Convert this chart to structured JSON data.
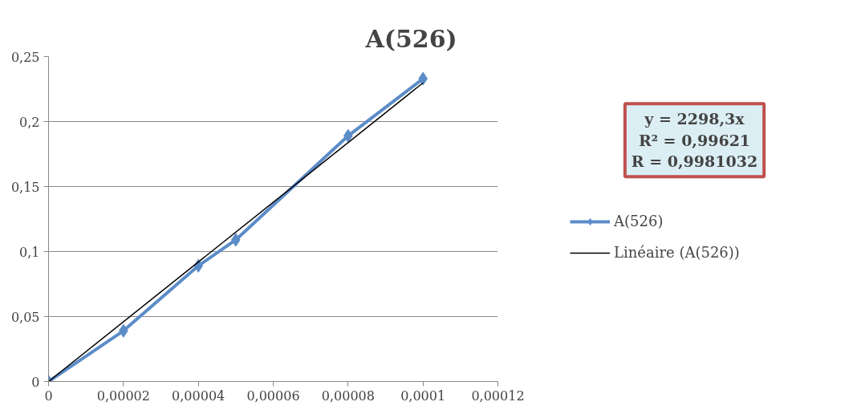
{
  "chart_data": {
    "type": "line",
    "title": "A(526)",
    "xlim": [
      0,
      0.00012
    ],
    "ylim": [
      0,
      0.25
    ],
    "xticks": [
      0,
      {
        "value": 2e-05,
        "label": "0,00002"
      },
      {
        "value": 4e-05,
        "label": "0,00004"
      },
      {
        "value": 6e-05,
        "label": "0,00006"
      },
      {
        "value": 8e-05,
        "label": "0,00008"
      },
      {
        "value": 0.0001,
        "label": "0,0001"
      },
      {
        "value": 0.00012,
        "label": "0,00012"
      }
    ],
    "yticks": [
      0,
      {
        "value": 0.05,
        "label": "0,05"
      },
      {
        "value": 0.1,
        "label": "0,1"
      },
      {
        "value": 0.15,
        "label": "0,15"
      },
      {
        "value": 0.2,
        "label": "0,2"
      },
      {
        "value": 0.25,
        "label": "0,25"
      }
    ],
    "grid": "y",
    "legend": "right",
    "marker": "diamond",
    "annotations": [
      "y = 2298,3x\nR² = 0,99621\nR = 0,9981032"
    ],
    "series": [
      {
        "name": "A(526)",
        "color": "#5b8cc8",
        "x": [
          0,
          2e-05,
          4e-05,
          5e-05,
          8e-05,
          0.0001
        ],
        "values": [
          0,
          0.039,
          0.089,
          0.109,
          0.189,
          0.233
        ]
      },
      {
        "name": "Linéaire (A(526))",
        "type": "line",
        "marker": "none",
        "color": "#000000",
        "x": [
          0,
          0.0001
        ],
        "values": [
          0,
          0.2298
        ]
      }
    ]
  }
}
